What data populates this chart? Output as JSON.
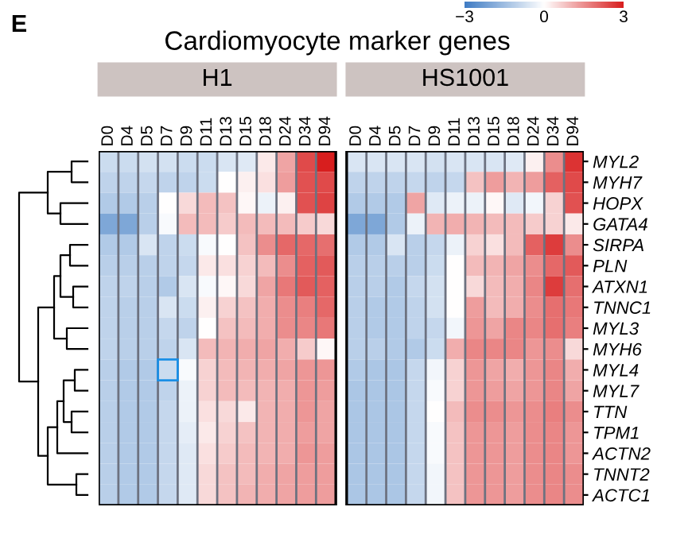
{
  "chart_data": {
    "type": "heatmap",
    "title": "Cardiomyocyte marker genes",
    "annotations": [
      "E",
      "H1",
      "HS1001"
    ],
    "grid": "x",
    "categories": [
      "D0",
      "D4",
      "D5",
      "D7",
      "D9",
      "D11",
      "D13",
      "D15",
      "D18",
      "D24",
      "D34",
      "D94",
      "D0",
      "D4",
      "D5",
      "D7",
      "D9",
      "D11",
      "D13",
      "D15",
      "D18",
      "D24",
      "D34",
      "D94"
    ],
    "y_categories": [
      "MYL2",
      "MYH7",
      "HOPX",
      "GATA4",
      "SIRPA",
      "PLN",
      "ATXN1",
      "TNNC1",
      "MYL3",
      "MYH6",
      "MYL4",
      "MYL7",
      "TTN",
      "TPM1",
      "ACTN2",
      "TNNT2",
      "ACTC1"
    ],
    "clim": [
      -3,
      3
    ],
    "cticks": [
      {
        "value": -3,
        "label": "−3"
      },
      0,
      3
    ],
    "cells": [
      [
        -0.8,
        -0.8,
        -0.7,
        -0.7,
        -0.8,
        -0.8,
        -0.6,
        -0.5,
        0.3,
        1.2,
        2.4,
        3.0,
        -0.6,
        -0.6,
        -0.6,
        -0.6,
        -0.7,
        -0.6,
        -0.6,
        -0.6,
        -0.5,
        0.2,
        1.5,
        2.7
      ],
      [
        -1,
        -1,
        -0.9,
        -1,
        -1,
        -0.8,
        0,
        0.2,
        0.4,
        1.3,
        2.3,
        2.4,
        -1,
        -1,
        -1,
        -0.9,
        -1,
        -0.9,
        0.8,
        1.3,
        1.0,
        1.3,
        2.1,
        2.4
      ],
      [
        -1.2,
        -1.2,
        -1.1,
        0,
        0.5,
        0.9,
        0.8,
        0.1,
        -0.3,
        0.2,
        2.3,
        2.5,
        -1.2,
        -1.2,
        -1.2,
        1.2,
        -0.5,
        -0.3,
        -0.3,
        0.1,
        -0.5,
        -0.2,
        0.6,
        2.3
      ],
      [
        -2,
        -2,
        -1.1,
        -0.1,
        0.9,
        0.9,
        0.7,
        0.9,
        0.9,
        0.9,
        0.7,
        0.5,
        -2,
        -2,
        -1.2,
        -0.3,
        1.0,
        1.1,
        1.0,
        0.9,
        0.9,
        0.7,
        0.6,
        0.3
      ],
      [
        -1.2,
        -1.2,
        -0.6,
        -1,
        -0.8,
        -0.1,
        0,
        0.8,
        1.5,
        2,
        2,
        1.9,
        -1.2,
        -1.2,
        -0.6,
        -1.1,
        -0.9,
        -0.3,
        0.6,
        0.4,
        0.9,
        2.1,
        2.6,
        1.5
      ],
      [
        -1.1,
        -1.1,
        -1.1,
        -1,
        -0.9,
        0.3,
        0.4,
        0.6,
        0.9,
        1.5,
        2.1,
        2.2,
        -1.1,
        -1.1,
        -1.1,
        -1.1,
        -0.8,
        0,
        0.9,
        1,
        1.2,
        1.5,
        2,
        2.2
      ],
      [
        -1,
        -1,
        -1.1,
        -1.2,
        -0.6,
        -0.1,
        0.1,
        0.5,
        1.2,
        1.8,
        2.2,
        2.1,
        -1.1,
        -1.1,
        -1.2,
        -0.9,
        -0.7,
        0,
        0.5,
        0.9,
        1.1,
        1.6,
        2.6,
        1.9
      ],
      [
        -1,
        -1.1,
        -1.1,
        -0.6,
        -0.8,
        0.2,
        0.6,
        0.8,
        1.1,
        1.5,
        1.7,
        2.0,
        -1.1,
        -1.2,
        -1.2,
        -1,
        -0.7,
        0,
        1.3,
        0.9,
        1.1,
        1.5,
        1.9,
        1.8
      ],
      [
        -1,
        -1.1,
        -1.1,
        -0.9,
        -1,
        0,
        0.8,
        0.9,
        1.1,
        1.5,
        1.6,
        1.8,
        -1.1,
        -1.2,
        -1.2,
        -1,
        -0.9,
        -0.2,
        1.4,
        1.2,
        1.6,
        1.6,
        1.9,
        1.7
      ],
      [
        -1,
        -1.1,
        -1.1,
        -1,
        -0.6,
        0.9,
        1,
        1.1,
        1.2,
        1.1,
        0.7,
        0.1,
        -1.1,
        -1.1,
        -1.2,
        -1.2,
        -0.8,
        1.1,
        1.6,
        1.6,
        1.6,
        1.4,
        1.5,
        0.5
      ],
      [
        -1.1,
        -1.2,
        -1.2,
        -0.8,
        -0.1,
        0.6,
        0.9,
        1,
        1.1,
        1.2,
        1.4,
        1.4,
        -1.2,
        -1.3,
        -1.3,
        -0.9,
        -0.2,
        0.6,
        1.4,
        1.2,
        1.1,
        1.4,
        1.6,
        1.1
      ],
      [
        -1.1,
        -1.2,
        -1.2,
        -1,
        -0.3,
        0.6,
        0.9,
        0.9,
        1.0,
        1.1,
        1.4,
        1.3,
        -1.3,
        -1.3,
        -1.3,
        -0.9,
        -0.1,
        0.6,
        1.4,
        1.3,
        1.2,
        1.4,
        1.6,
        1.2
      ],
      [
        -1.1,
        -1.2,
        -1.2,
        -0.9,
        -0.3,
        0.4,
        0.5,
        0.3,
        1.0,
        1.1,
        1.4,
        1.2,
        -1.3,
        -1.3,
        -1.3,
        -0.9,
        0,
        0.9,
        1.5,
        1.5,
        1.4,
        1.5,
        1.7,
        1.5
      ],
      [
        -1.1,
        -1.2,
        -1.2,
        -0.9,
        -0.4,
        0.3,
        0.6,
        0.8,
        1.0,
        1.1,
        1.3,
        1.2,
        -1.3,
        -1.3,
        -1.3,
        -0.9,
        -0.1,
        0.8,
        1.4,
        1.4,
        1.3,
        1.5,
        1.6,
        1.4
      ],
      [
        -1.1,
        -1.2,
        -1.2,
        -0.9,
        -0.5,
        0.4,
        0.7,
        0.9,
        1.0,
        1.1,
        1.4,
        1.3,
        -1.3,
        -1.3,
        -1.3,
        -0.9,
        -0.1,
        0.8,
        1.4,
        1.4,
        1.3,
        1.5,
        1.6,
        1.4
      ],
      [
        -1.1,
        -1.2,
        -1.2,
        -0.9,
        -0.5,
        0.5,
        0.8,
        0.9,
        1.1,
        1.2,
        1.3,
        1.3,
        -1.3,
        -1.3,
        -1.3,
        -0.9,
        -0.2,
        0.8,
        1.4,
        1.4,
        1.3,
        1.5,
        1.6,
        1.5
      ],
      [
        -1.1,
        -1.2,
        -1.2,
        -0.9,
        -0.5,
        0.5,
        0.8,
        1.0,
        1.1,
        1.2,
        1.3,
        1.3,
        -1.3,
        -1.3,
        -1.3,
        -0.9,
        -0.2,
        0.8,
        1.4,
        1.4,
        1.3,
        1.5,
        1.6,
        1.5
      ]
    ]
  }
}
